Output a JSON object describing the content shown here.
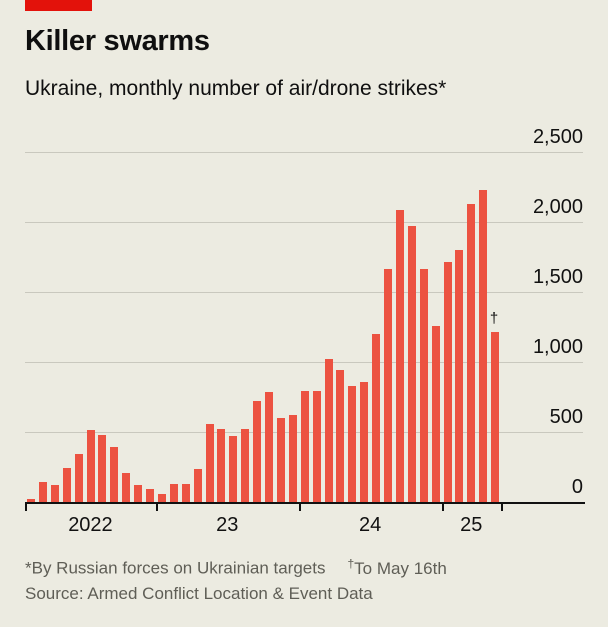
{
  "header": {
    "title": "Killer swarms",
    "subtitle": "Ukraine, monthly number of air/drone strikes*"
  },
  "chart_data": {
    "type": "bar",
    "title": "Killer swarms",
    "subtitle": "Ukraine, monthly number of air/drone strikes*",
    "categories": [
      "Feb 2022",
      "Mar 2022",
      "Apr 2022",
      "May 2022",
      "Jun 2022",
      "Jul 2022",
      "Aug 2022",
      "Sep 2022",
      "Oct 2022",
      "Nov 2022",
      "Dec 2022",
      "Jan 2023",
      "Feb 2023",
      "Mar 2023",
      "Apr 2023",
      "May 2023",
      "Jun 2023",
      "Jul 2023",
      "Aug 2023",
      "Sep 2023",
      "Oct 2023",
      "Nov 2023",
      "Dec 2023",
      "Jan 2024",
      "Feb 2024",
      "Mar 2024",
      "Apr 2024",
      "May 2024",
      "Jun 2024",
      "Jul 2024",
      "Aug 2024",
      "Sep 2024",
      "Oct 2024",
      "Nov 2024",
      "Dec 2024",
      "Jan 2025",
      "Feb 2025",
      "Mar 2025",
      "Apr 2025",
      "May 2025"
    ],
    "values": [
      20,
      145,
      120,
      240,
      340,
      515,
      480,
      395,
      210,
      125,
      95,
      55,
      130,
      130,
      235,
      560,
      525,
      470,
      520,
      725,
      785,
      600,
      620,
      790,
      790,
      1025,
      945,
      830,
      855,
      1200,
      1665,
      2085,
      1970,
      1665,
      1255,
      1715,
      1800,
      2130,
      2230,
      1215
    ],
    "ylim": [
      0,
      2500
    ],
    "yticks": [
      {
        "value": 0,
        "label": "0"
      },
      {
        "value": 500,
        "label": "500"
      },
      {
        "value": 1000,
        "label": "1,000"
      },
      {
        "value": 1500,
        "label": "1,500"
      },
      {
        "value": 2000,
        "label": "2,000"
      },
      {
        "value": 2500,
        "label": "2,500"
      }
    ],
    "x_axis": {
      "labels": [
        "2022",
        "23",
        "24",
        "25"
      ],
      "tick_month_indices": [
        0,
        11,
        23,
        35,
        40
      ]
    },
    "annotation": {
      "symbol": "†",
      "applies_to": "May 2025",
      "meaning": "To May 16th"
    },
    "grid": "horizontal",
    "legend": "none"
  },
  "footer": {
    "note1": "*By Russian forces on Ukrainian targets",
    "note2_symbol": "†",
    "note2": "To May 16th",
    "source": "Source: Armed Conflict Location & Event Data"
  },
  "colors": {
    "background": "#ecebe1",
    "bar": "#ec5241",
    "brand_tab": "#e3120b",
    "gridline": "#c9c8be",
    "axis": "#111111",
    "text": "#0f0f0f",
    "footnote_text": "#5f5e56"
  }
}
